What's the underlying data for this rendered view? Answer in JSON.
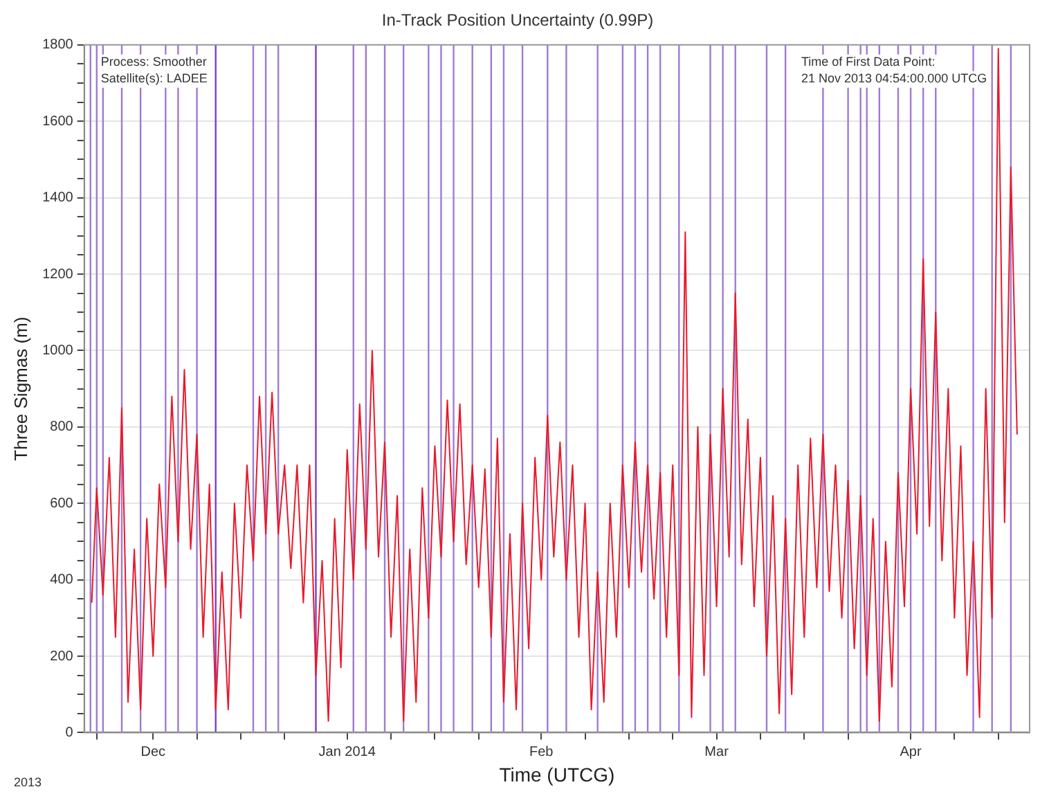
{
  "chart_data": {
    "type": "line",
    "title": "In-Track Position Uncertainty (0.99P)",
    "xlabel": "Time (UTCG)",
    "ylabel": "Three Sigmas (m)",
    "annotations": [
      "Process: Smoother\nSatellite(s): LADEE",
      "Time of First Data Point:\n21 Nov 2013 04:54:00.000 UTCG",
      "2013"
    ],
    "x": [
      "2013-11-21T04:54",
      "2013-11-22",
      "2013-11-23",
      "2013-11-24",
      "2013-11-25",
      "2013-11-26",
      "2013-11-27",
      "2013-11-28",
      "2013-11-29",
      "2013-11-30",
      "2013-12-01",
      "2013-12-02",
      "2013-12-03",
      "2013-12-04",
      "2013-12-05",
      "2013-12-06",
      "2013-12-07",
      "2013-12-08",
      "2013-12-09",
      "2013-12-10",
      "2013-12-11",
      "2013-12-12",
      "2013-12-13",
      "2013-12-14",
      "2013-12-15",
      "2013-12-16",
      "2013-12-17",
      "2013-12-18",
      "2013-12-19",
      "2013-12-20",
      "2013-12-21",
      "2013-12-22",
      "2013-12-23",
      "2013-12-24",
      "2013-12-25",
      "2013-12-26",
      "2013-12-27",
      "2013-12-28",
      "2013-12-29",
      "2013-12-30",
      "2013-12-31",
      "2014-01-01",
      "2014-01-02",
      "2014-01-03",
      "2014-01-04",
      "2014-01-05",
      "2014-01-06",
      "2014-01-07",
      "2014-01-08",
      "2014-01-09",
      "2014-01-10",
      "2014-01-11",
      "2014-01-12",
      "2014-01-13",
      "2014-01-14",
      "2014-01-15",
      "2014-01-16",
      "2014-01-17",
      "2014-01-18",
      "2014-01-19",
      "2014-01-20",
      "2014-01-21",
      "2014-01-22",
      "2014-01-23",
      "2014-01-24",
      "2014-01-25",
      "2014-01-26",
      "2014-01-27",
      "2014-01-28",
      "2014-01-29",
      "2014-01-30",
      "2014-01-31",
      "2014-02-01",
      "2014-02-02",
      "2014-02-03",
      "2014-02-04",
      "2014-02-05",
      "2014-02-06",
      "2014-02-07",
      "2014-02-08",
      "2014-02-09",
      "2014-02-10",
      "2014-02-11",
      "2014-02-12",
      "2014-02-13",
      "2014-02-14",
      "2014-02-15",
      "2014-02-16",
      "2014-02-17",
      "2014-02-18",
      "2014-02-19",
      "2014-02-20",
      "2014-02-21",
      "2014-02-22",
      "2014-02-23",
      "2014-02-24",
      "2014-02-25",
      "2014-02-26",
      "2014-02-27",
      "2014-02-28",
      "2014-03-01",
      "2014-03-02",
      "2014-03-03",
      "2014-03-04",
      "2014-03-05",
      "2014-03-06",
      "2014-03-07",
      "2014-03-08",
      "2014-03-09",
      "2014-03-10",
      "2014-03-11",
      "2014-03-12",
      "2014-03-13",
      "2014-03-14",
      "2014-03-15",
      "2014-03-16",
      "2014-03-17",
      "2014-03-18",
      "2014-03-19",
      "2014-03-20",
      "2014-03-21",
      "2014-03-22",
      "2014-03-23",
      "2014-03-24",
      "2014-03-25",
      "2014-03-26",
      "2014-03-27",
      "2014-03-28",
      "2014-03-29",
      "2014-03-30",
      "2014-03-31",
      "2014-04-01",
      "2014-04-02",
      "2014-04-03",
      "2014-04-04",
      "2014-04-05",
      "2014-04-06",
      "2014-04-07",
      "2014-04-08",
      "2014-04-09",
      "2014-04-10",
      "2014-04-11",
      "2014-04-12",
      "2014-04-13",
      "2014-04-14",
      "2014-04-15",
      "2014-04-16",
      "2014-04-17",
      "2014-04-18"
    ],
    "series": [
      {
        "color": "#e8192c",
        "values": [
          340,
          640,
          360,
          720,
          250,
          850,
          80,
          480,
          60,
          560,
          200,
          650,
          380,
          880,
          500,
          950,
          480,
          780,
          250,
          650,
          60,
          420,
          60,
          600,
          300,
          700,
          450,
          880,
          520,
          890,
          520,
          700,
          430,
          700,
          340,
          700,
          150,
          450,
          30,
          560,
          170,
          740,
          400,
          860,
          480,
          1000,
          460,
          760,
          250,
          620,
          30,
          480,
          80,
          640,
          300,
          750,
          460,
          870,
          500,
          860,
          440,
          700,
          380,
          690,
          250,
          770,
          80,
          520,
          60,
          600,
          220,
          720,
          400,
          830,
          460,
          760,
          400,
          700,
          250,
          600,
          60,
          420,
          80,
          600,
          250,
          700,
          380,
          760,
          420,
          700,
          350,
          680,
          250,
          700,
          150,
          1310,
          40,
          800,
          150,
          780,
          330,
          900,
          460,
          1150,
          440,
          820,
          330,
          720,
          200,
          620,
          50,
          560,
          100,
          700,
          250,
          770,
          380,
          780,
          370,
          700,
          300,
          660,
          220,
          620,
          150,
          560,
          30,
          500,
          120,
          680,
          330,
          900,
          520,
          1240,
          540,
          1100,
          450,
          900,
          300,
          750,
          150,
          500,
          40,
          900,
          300,
          1790,
          550,
          1480,
          780
        ]
      }
    ],
    "xlim": [
      "2013-11-20",
      "2014-04-20"
    ],
    "xticks": [
      {
        "value": "2013-11-22",
        "label": null
      },
      {
        "value": "2013-12-01",
        "label": "Dec"
      },
      {
        "value": "2013-12-08",
        "label": null
      },
      {
        "value": "2013-12-15",
        "label": null
      },
      {
        "value": "2013-12-22",
        "label": null
      },
      {
        "value": "2014-01-01",
        "label": "Jan 2014"
      },
      {
        "value": "2014-01-08",
        "label": null
      },
      {
        "value": "2014-01-15",
        "label": null
      },
      {
        "value": "2014-01-22",
        "label": null
      },
      {
        "value": "2014-02-01",
        "label": "Feb"
      },
      {
        "value": "2014-02-08",
        "label": null
      },
      {
        "value": "2014-02-15",
        "label": null
      },
      {
        "value": "2014-02-22",
        "label": null
      },
      {
        "value": "2014-03-01",
        "label": "Mar"
      },
      {
        "value": "2014-03-08",
        "label": null
      },
      {
        "value": "2014-03-15",
        "label": null
      },
      {
        "value": "2014-03-22",
        "label": null
      },
      {
        "value": "2014-04-01",
        "label": "Apr"
      },
      {
        "value": "2014-04-08",
        "label": null
      },
      {
        "value": "2014-04-15",
        "label": null
      }
    ],
    "ylim": [
      0,
      1800
    ],
    "yticks": [
      0,
      {
        "value": 50,
        "label": null
      },
      {
        "value": 100,
        "label": null
      },
      {
        "value": 150,
        "label": null
      },
      200,
      {
        "value": 250,
        "label": null
      },
      {
        "value": 300,
        "label": null
      },
      {
        "value": 350,
        "label": null
      },
      400,
      {
        "value": 450,
        "label": null
      },
      {
        "value": 500,
        "label": null
      },
      {
        "value": 550,
        "label": null
      },
      600,
      {
        "value": 650,
        "label": null
      },
      {
        "value": 700,
        "label": null
      },
      {
        "value": 750,
        "label": null
      },
      800,
      {
        "value": 850,
        "label": null
      },
      {
        "value": 900,
        "label": null
      },
      {
        "value": 950,
        "label": null
      },
      1000,
      {
        "value": 1050,
        "label": null
      },
      {
        "value": 1100,
        "label": null
      },
      {
        "value": 1150,
        "label": null
      },
      1200,
      {
        "value": 1250,
        "label": null
      },
      {
        "value": 1300,
        "label": null
      },
      {
        "value": 1350,
        "label": null
      },
      1400,
      {
        "value": 1450,
        "label": null
      },
      {
        "value": 1500,
        "label": null
      },
      {
        "value": 1550,
        "label": null
      },
      1600,
      {
        "value": 1650,
        "label": null
      },
      {
        "value": 1700,
        "label": null
      },
      {
        "value": 1750,
        "label": null
      },
      1800
    ],
    "ref_lines": [
      {
        "axis": "x",
        "value": "2013-11-21",
        "color": "#a07ad0"
      },
      {
        "axis": "x",
        "value": "2013-11-22",
        "color": "#a07ad0"
      },
      {
        "axis": "x",
        "value": "2013-11-23",
        "color": "#a07ad0"
      },
      {
        "axis": "x",
        "value": "2013-11-26",
        "color": "#a07ad0"
      },
      {
        "axis": "x",
        "value": "2013-11-29",
        "color": "#a07ad0"
      },
      {
        "axis": "x",
        "value": "2013-12-03",
        "color": "#a07ad0"
      },
      {
        "axis": "x",
        "value": "2013-12-05",
        "color": "#a07ad0"
      },
      {
        "axis": "x",
        "value": "2013-12-08",
        "color": "#a07ad0"
      },
      {
        "axis": "x",
        "value": "2013-12-11",
        "color": "#7a3fc0"
      },
      {
        "axis": "x",
        "value": "2013-12-17",
        "color": "#a07ad0"
      },
      {
        "axis": "x",
        "value": "2013-12-19",
        "color": "#a07ad0"
      },
      {
        "axis": "x",
        "value": "2013-12-21",
        "color": "#a07ad0"
      },
      {
        "axis": "x",
        "value": "2013-12-27",
        "color": "#7a3fc0"
      },
      {
        "axis": "x",
        "value": "2014-01-02",
        "color": "#a07ad0"
      },
      {
        "axis": "x",
        "value": "2014-01-04",
        "color": "#a07ad0"
      },
      {
        "axis": "x",
        "value": "2014-01-07",
        "color": "#a07ad0"
      },
      {
        "axis": "x",
        "value": "2014-01-10",
        "color": "#a07ad0"
      },
      {
        "axis": "x",
        "value": "2014-01-14",
        "color": "#a07ad0"
      },
      {
        "axis": "x",
        "value": "2014-01-16",
        "color": "#a07ad0"
      },
      {
        "axis": "x",
        "value": "2014-01-18",
        "color": "#a07ad0"
      },
      {
        "axis": "x",
        "value": "2014-01-21",
        "color": "#a07ad0"
      },
      {
        "axis": "x",
        "value": "2014-01-24",
        "color": "#a07ad0"
      },
      {
        "axis": "x",
        "value": "2014-01-26",
        "color": "#a07ad0"
      },
      {
        "axis": "x",
        "value": "2014-01-29",
        "color": "#a07ad0"
      },
      {
        "axis": "x",
        "value": "2014-02-02",
        "color": "#a07ad0"
      },
      {
        "axis": "x",
        "value": "2014-02-05",
        "color": "#a07ad0"
      },
      {
        "axis": "x",
        "value": "2014-02-10",
        "color": "#a07ad0"
      },
      {
        "axis": "x",
        "value": "2014-02-14",
        "color": "#a07ad0"
      },
      {
        "axis": "x",
        "value": "2014-02-16",
        "color": "#a07ad0"
      },
      {
        "axis": "x",
        "value": "2014-02-18",
        "color": "#a07ad0"
      },
      {
        "axis": "x",
        "value": "2014-02-20",
        "color": "#a07ad0"
      },
      {
        "axis": "x",
        "value": "2014-02-23",
        "color": "#a07ad0"
      },
      {
        "axis": "x",
        "value": "2014-02-28",
        "color": "#a07ad0"
      },
      {
        "axis": "x",
        "value": "2014-03-02",
        "color": "#a07ad0"
      },
      {
        "axis": "x",
        "value": "2014-03-04",
        "color": "#a07ad0"
      },
      {
        "axis": "x",
        "value": "2014-03-09",
        "color": "#a07ad0"
      },
      {
        "axis": "x",
        "value": "2014-03-12",
        "color": "#a07ad0"
      },
      {
        "axis": "x",
        "value": "2014-03-18",
        "color": "#a07ad0"
      },
      {
        "axis": "x",
        "value": "2014-03-22",
        "color": "#a07ad0"
      },
      {
        "axis": "x",
        "value": "2014-03-24",
        "color": "#a07ad0"
      },
      {
        "axis": "x",
        "value": "2014-03-25",
        "color": "#a07ad0"
      },
      {
        "axis": "x",
        "value": "2014-03-27",
        "color": "#a07ad0"
      },
      {
        "axis": "x",
        "value": "2014-03-30",
        "color": "#a07ad0"
      },
      {
        "axis": "x",
        "value": "2014-04-01",
        "color": "#a07ad0"
      },
      {
        "axis": "x",
        "value": "2014-04-03",
        "color": "#a07ad0"
      },
      {
        "axis": "x",
        "value": "2014-04-05",
        "color": "#a07ad0"
      },
      {
        "axis": "x",
        "value": "2014-04-11",
        "color": "#a07ad0"
      },
      {
        "axis": "x",
        "value": "2014-04-14",
        "color": "#a07ad0"
      },
      {
        "axis": "x",
        "value": "2014-04-17",
        "color": "#a07ad0"
      }
    ],
    "grid": "y",
    "legend": false,
    "marker": "none",
    "line_style": "solid"
  }
}
